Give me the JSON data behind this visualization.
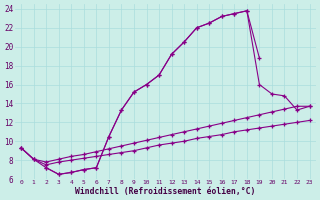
{
  "xlabel": "Windchill (Refroidissement éolien,°C)",
  "background_color": "#cceee8",
  "grid_color": "#aadddd",
  "line_color": "#880088",
  "xlim": [
    -0.5,
    23.5
  ],
  "ylim": [
    6,
    24.5
  ],
  "yticks": [
    6,
    8,
    10,
    12,
    14,
    16,
    18,
    20,
    22,
    24
  ],
  "xticks": [
    0,
    1,
    2,
    3,
    4,
    5,
    6,
    7,
    8,
    9,
    10,
    11,
    12,
    13,
    14,
    15,
    16,
    17,
    18,
    19,
    20,
    21,
    22,
    23
  ],
  "line1_x": [
    0,
    1,
    2,
    3,
    4,
    5,
    6,
    7,
    8,
    9,
    10,
    11,
    12,
    13,
    14,
    15,
    16,
    17,
    18,
    19
  ],
  "line1_y": [
    9.3,
    8.1,
    7.2,
    6.5,
    6.7,
    7.0,
    7.2,
    10.5,
    13.3,
    15.2,
    16.0,
    17.0,
    19.2,
    20.5,
    22.0,
    22.5,
    23.2,
    23.5,
    23.8,
    18.8
  ],
  "line2_x": [
    2,
    3,
    4,
    5,
    6,
    7,
    8,
    9,
    10,
    11,
    12,
    13,
    14,
    15,
    16,
    17,
    18,
    19,
    20,
    21,
    22,
    23
  ],
  "line2_y": [
    7.2,
    6.5,
    6.7,
    7.0,
    7.2,
    10.5,
    13.3,
    15.2,
    16.0,
    17.0,
    19.2,
    20.5,
    22.0,
    22.5,
    23.2,
    23.5,
    23.8,
    16.0,
    15.0,
    14.8,
    13.3,
    13.7
  ],
  "line3_x": [
    0,
    1,
    2,
    3,
    4,
    5,
    6,
    7,
    8,
    9,
    10,
    11,
    12,
    13,
    14,
    15,
    16,
    17,
    18,
    19,
    20,
    21,
    22,
    23
  ],
  "line3_y": [
    9.3,
    8.1,
    7.8,
    8.1,
    8.4,
    8.6,
    8.9,
    9.2,
    9.5,
    9.8,
    10.1,
    10.4,
    10.7,
    11.0,
    11.3,
    11.6,
    11.9,
    12.2,
    12.5,
    12.8,
    13.1,
    13.4,
    13.7,
    13.7
  ],
  "line4_x": [
    0,
    1,
    2,
    3,
    4,
    5,
    6,
    7,
    8,
    9,
    10,
    11,
    12,
    13,
    14,
    15,
    16,
    17,
    18,
    19,
    20,
    21,
    22,
    23
  ],
  "line4_y": [
    9.3,
    8.1,
    7.5,
    7.8,
    8.0,
    8.2,
    8.4,
    8.6,
    8.8,
    9.0,
    9.3,
    9.6,
    9.8,
    10.0,
    10.3,
    10.5,
    10.7,
    11.0,
    11.2,
    11.4,
    11.6,
    11.8,
    12.0,
    12.2
  ]
}
